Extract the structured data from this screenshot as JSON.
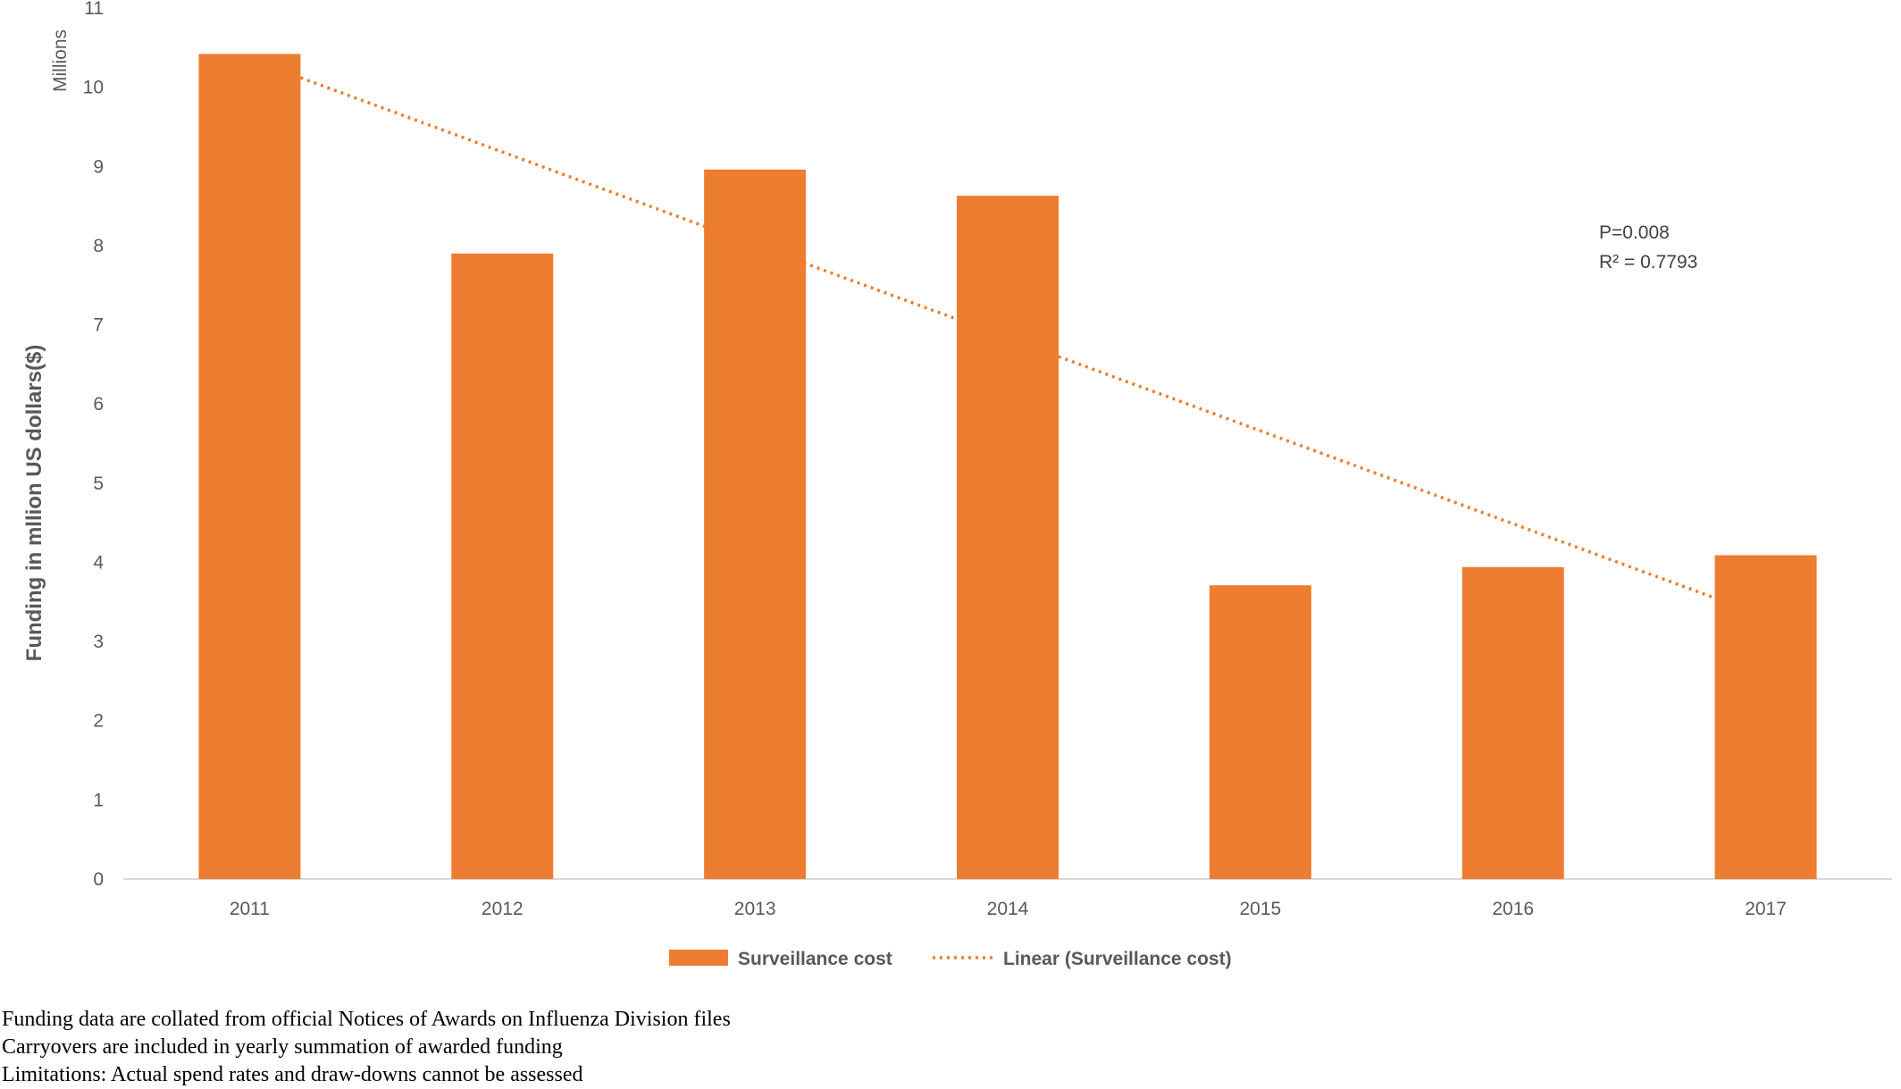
{
  "chart_data": {
    "type": "bar",
    "categories": [
      "2011",
      "2012",
      "2013",
      "2014",
      "2015",
      "2016",
      "2017"
    ],
    "series": [
      {
        "name": "Surveillance cost",
        "values": [
          10.42,
          7.9,
          8.96,
          8.63,
          3.71,
          3.94,
          4.09
        ],
        "color": "#ED7D31"
      }
    ],
    "trendline": {
      "name": "Linear (Surveillance cost)",
      "style": "dotted",
      "color": "#ED7D31",
      "start": 10.12,
      "end": 3.55
    },
    "ylabel": "Funding in mllion US dollars($)",
    "yunits": "Millions",
    "ylim": [
      0,
      11
    ],
    "yticks": [
      "0",
      "1",
      "2",
      "3",
      "4",
      "5",
      "6",
      "7",
      "8",
      "9",
      "10",
      "11"
    ],
    "annotations": [
      "P=0.008",
      "R² = 0.7793"
    ],
    "grid": false,
    "legend": "bottom"
  },
  "notes": [
    "Funding data are collated from official Notices of Awards on Influenza Division files",
    "Carryovers are included in yearly summation of awarded funding",
    "Limitations: Actual spend rates and draw-downs cannot be assessed"
  ]
}
